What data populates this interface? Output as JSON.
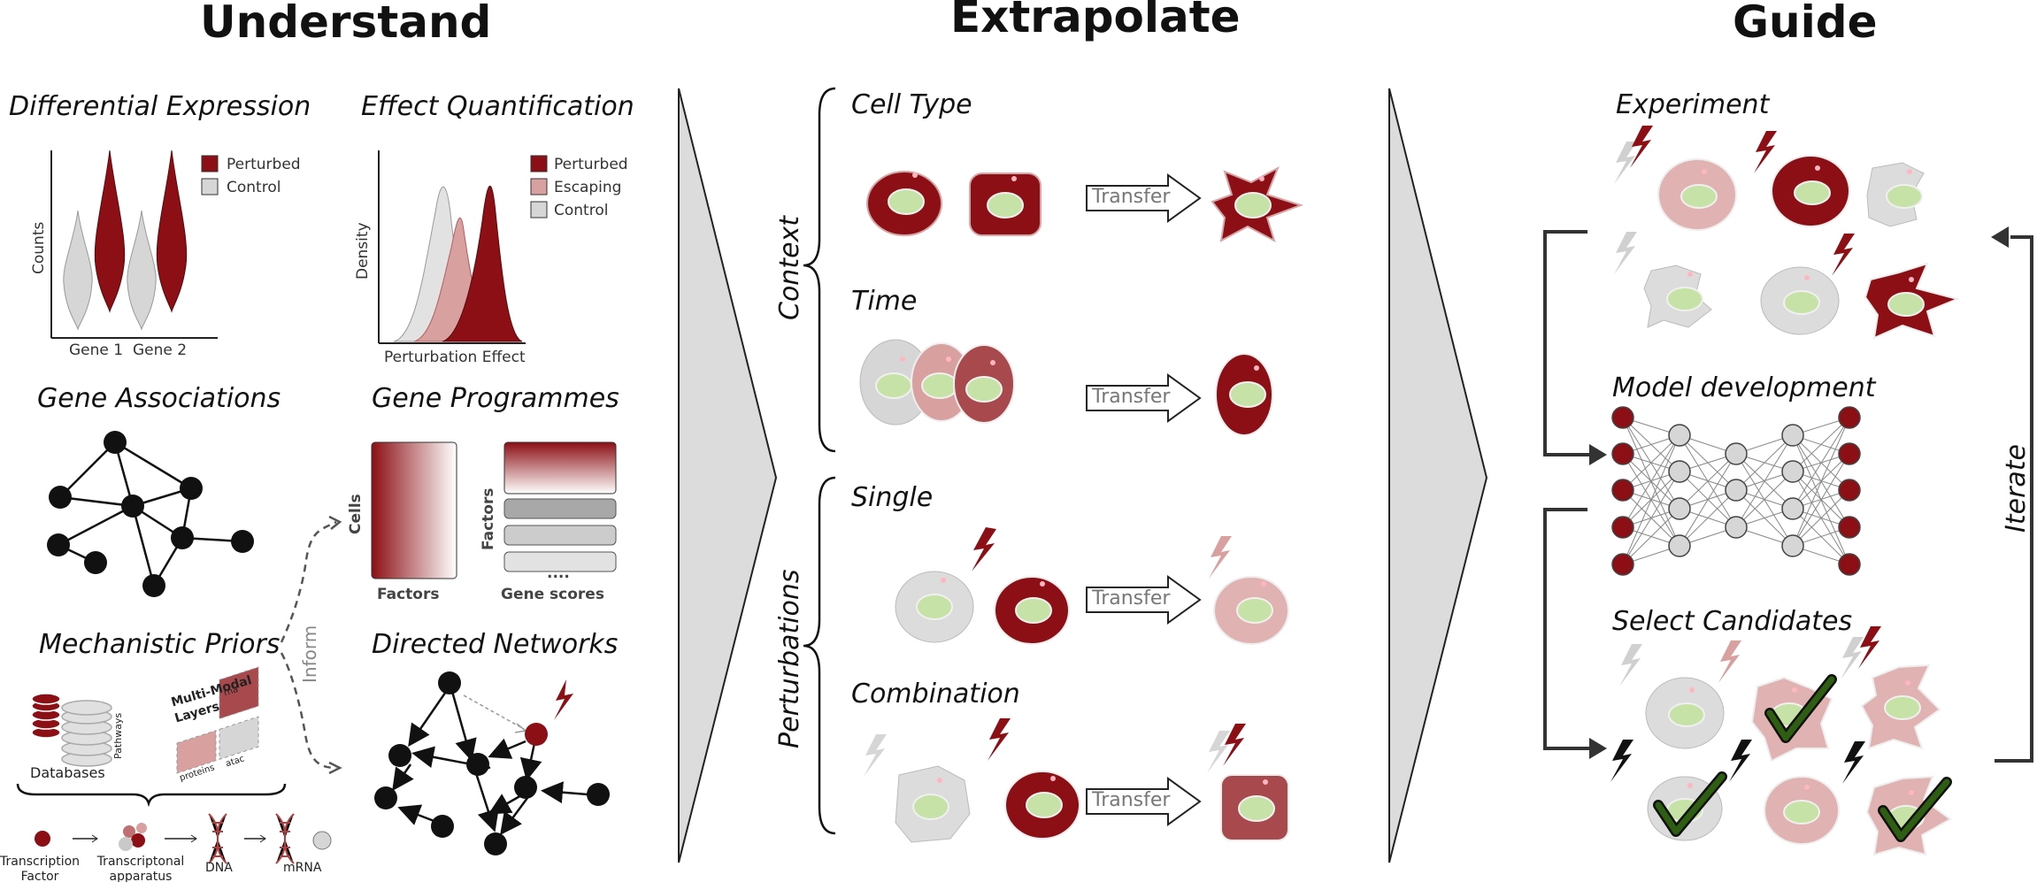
{
  "columns": {
    "understand": "Understand",
    "extrapolate": "Extrapolate",
    "guide": "Guide"
  },
  "understand": {
    "differential_expression": {
      "title": "Differential Expression",
      "legend": [
        "Perturbed",
        "Control"
      ],
      "ylabel": "Counts",
      "xlabels": [
        "Gene 1",
        "Gene 2"
      ]
    },
    "effect_quantification": {
      "title": "Effect Quantification",
      "legend": [
        "Perturbed",
        "Escaping",
        "Control"
      ],
      "ylabel": "Density",
      "xlabel": "Perturbation Effect"
    },
    "gene_associations": {
      "title": "Gene Associations"
    },
    "gene_programmes": {
      "title": "Gene Programmes",
      "cells_label": "Cells",
      "factors_label_x": "Factors",
      "factors_label_y": "Factors",
      "gene_scores_label": "Gene scores",
      "ellipsis": "...."
    },
    "mechanistic_priors": {
      "title": "Mechanistic Priors",
      "inform_label": "Inform",
      "databases_label": "Databases",
      "pathways_label": "Pathways",
      "multimodal_label_1": "Multi-Modal",
      "multimodal_label_2": "Layers",
      "layers": [
        "rna",
        "proteins",
        "atac"
      ],
      "chain": [
        "Transcription Factor",
        "Transcriptonal apparatus",
        "DNA",
        "mRNA"
      ]
    },
    "directed_networks": {
      "title": "Directed Networks"
    }
  },
  "extrapolate": {
    "context_label": "Context",
    "perturbations_label": "Perturbations",
    "rows": [
      {
        "title": "Cell Type",
        "transfer": "Transfer"
      },
      {
        "title": "Time",
        "transfer": "Transfer"
      },
      {
        "title": "Single",
        "transfer": "Transfer"
      },
      {
        "title": "Combination",
        "transfer": "Transfer"
      }
    ]
  },
  "guide": {
    "experiment": "Experiment",
    "model_development": "Model development",
    "select_candidates": "Select Candidates",
    "iterate": "Iterate"
  },
  "colors": {
    "perturbed": "#8b0f14",
    "escaping": "#d9a0a0",
    "control": "#d6d6d6",
    "nucleus": "#c7e2a6",
    "check": "#2d5e12",
    "arrow_panel": "#dcdcdc",
    "lightning_dark": "#8b0f14",
    "lightning_light": "#d0d0d0"
  }
}
